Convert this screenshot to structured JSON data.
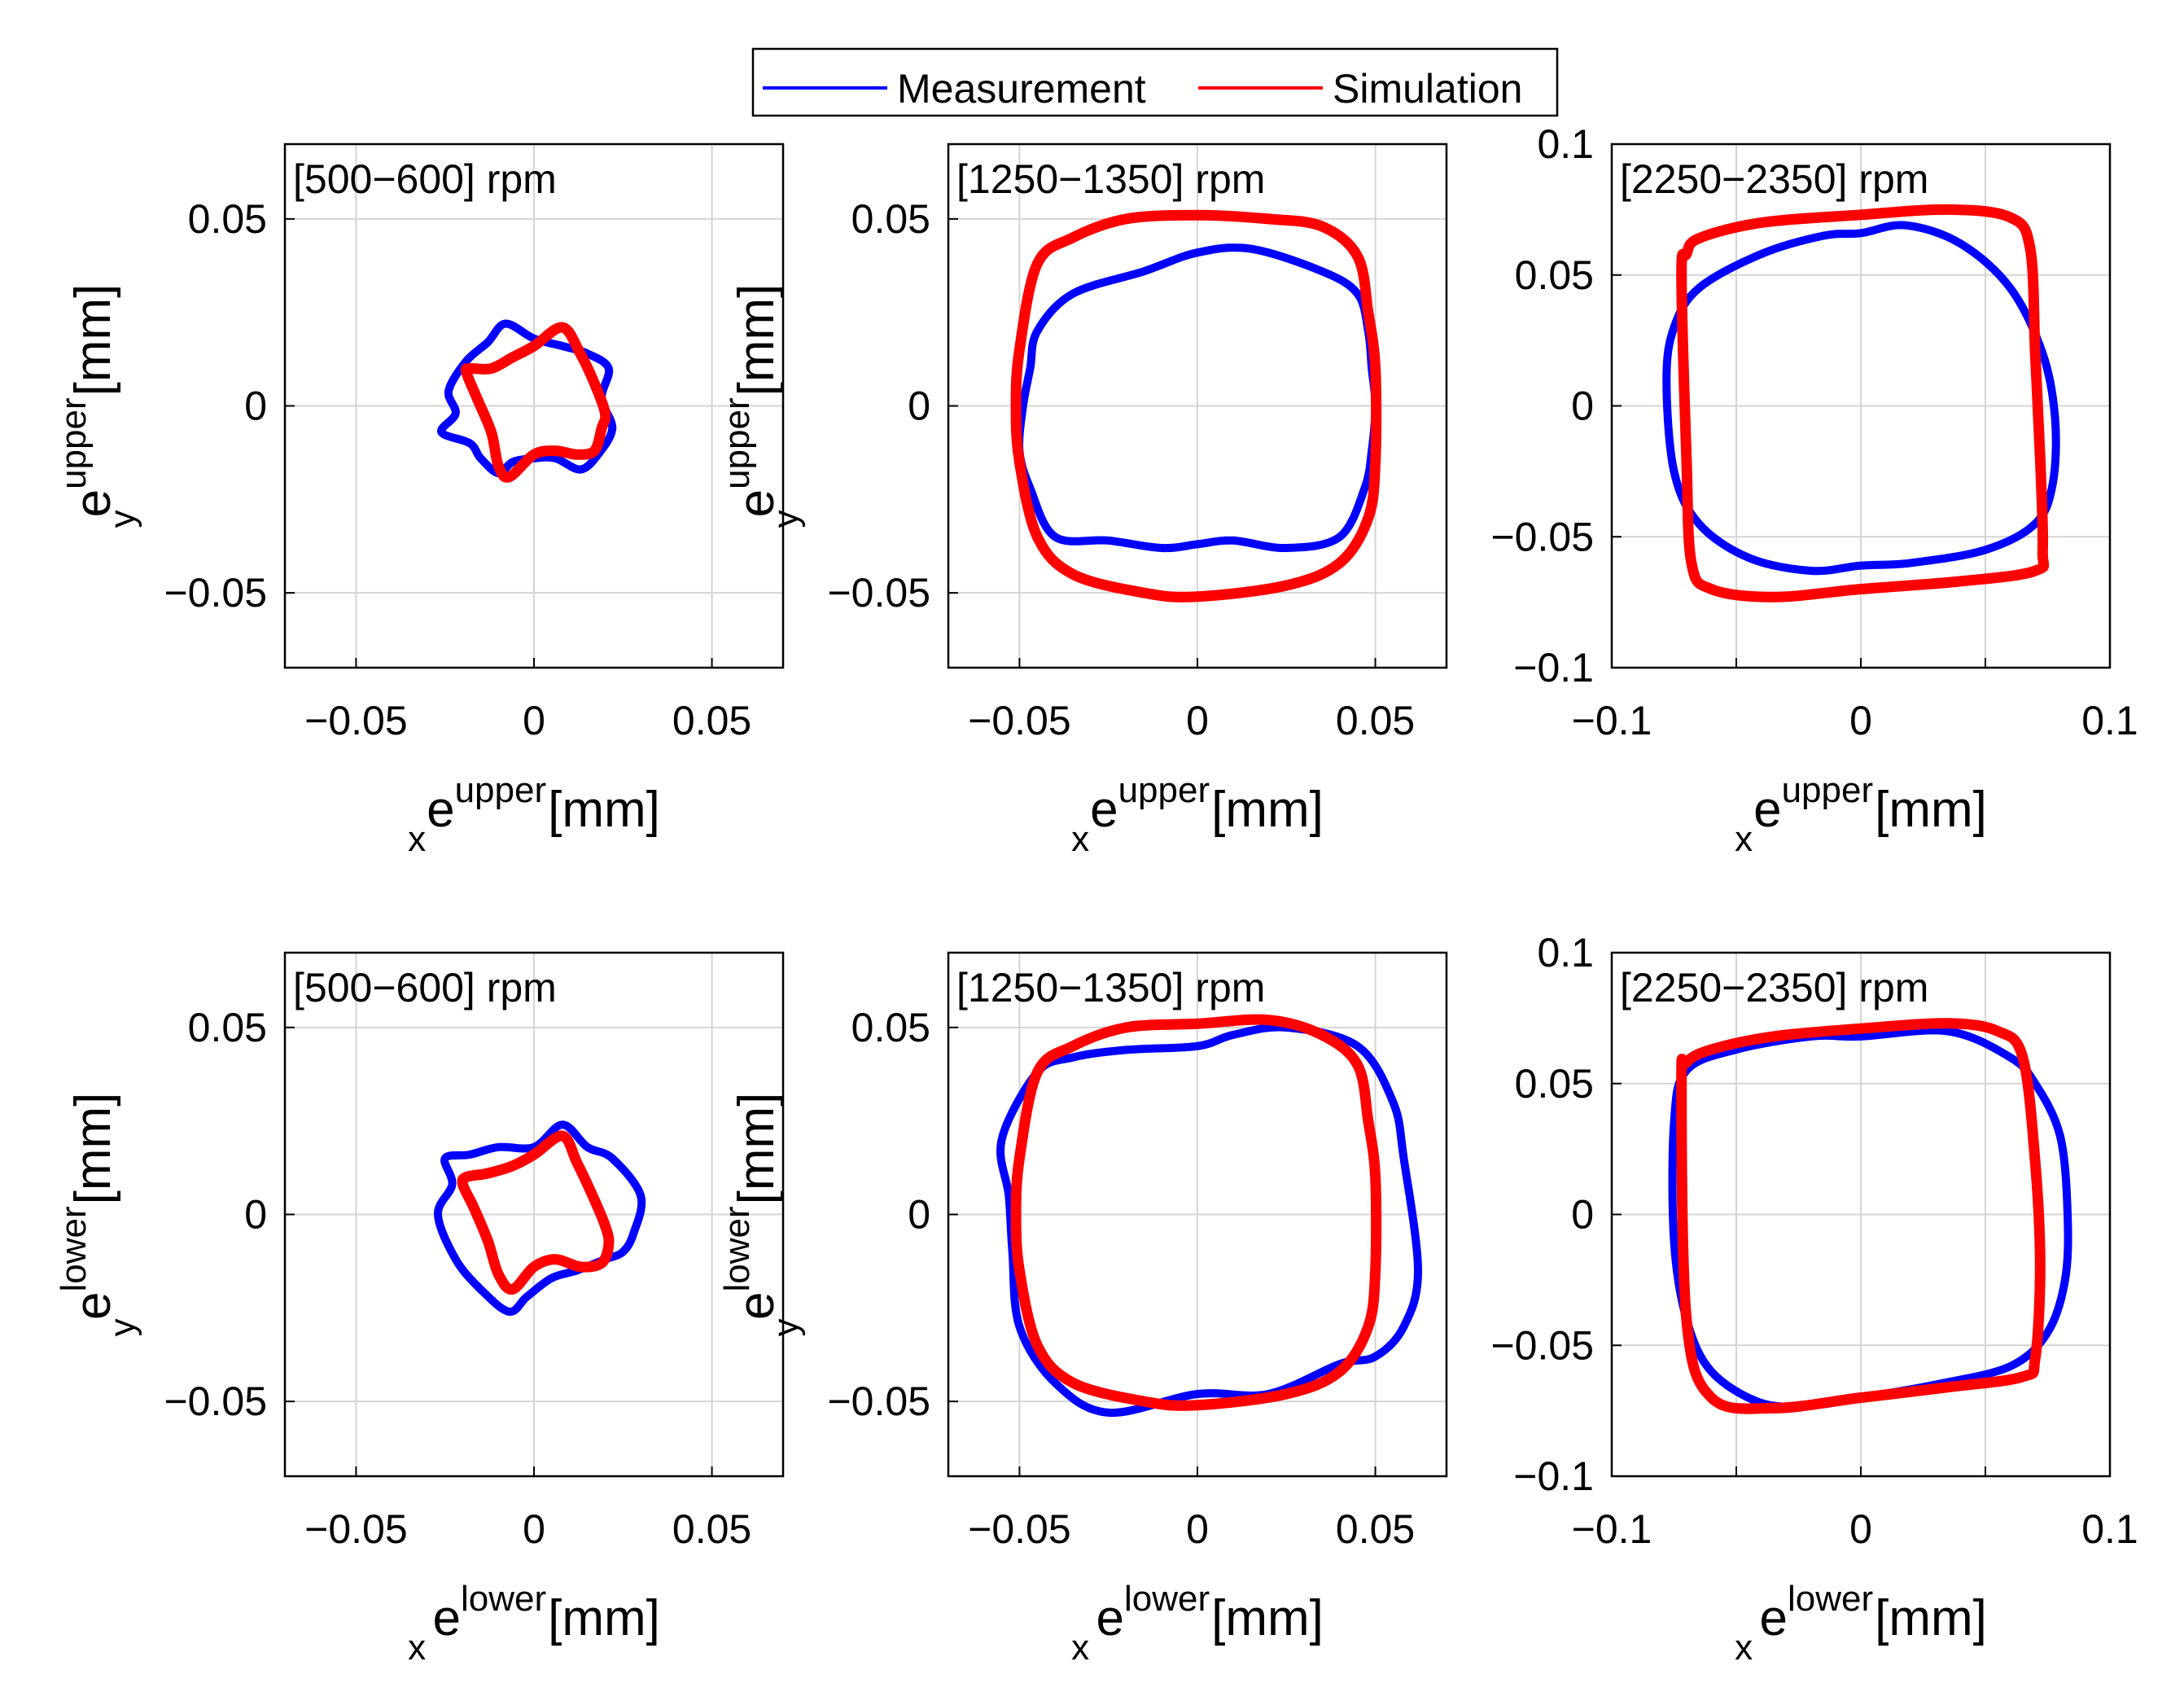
{
  "legend": {
    "measurement_label": "Measurement",
    "simulation_label": "Simulation",
    "measurement_color": "#0000ff",
    "simulation_color": "#ff0000"
  },
  "chart_data": [
    {
      "type": "line",
      "row": "upper",
      "title": "[500−600] rpm",
      "xlim": [
        -0.07,
        0.07
      ],
      "ylim": [
        -0.07,
        0.07
      ],
      "xticks": [
        -0.05,
        0,
        0.05
      ],
      "yticks": [
        -0.05,
        0,
        0.05
      ],
      "xtick_labels": [
        "-0.05",
        "0",
        "0.05"
      ],
      "ytick_labels": [
        "-0.05",
        "0",
        "0.05"
      ],
      "xlabel": {
        "base": "e",
        "sup": "upper",
        "sub": "x",
        "unit": "[mm]"
      },
      "ylabel": {
        "base": "e",
        "sup": "upper",
        "sub": "y",
        "unit": "[mm]"
      },
      "series": [
        {
          "name": "Measurement",
          "x": [
            0.0,
            0.008,
            0.015,
            0.021,
            0.019,
            0.022,
            0.018,
            0.013,
            0.006,
            0.0,
            -0.006,
            -0.01,
            -0.015,
            -0.018,
            -0.026,
            -0.022,
            -0.024,
            -0.019,
            -0.013,
            -0.008,
            0.0
          ],
          "y": [
            0.018,
            0.016,
            0.014,
            0.01,
            0.002,
            -0.006,
            -0.013,
            -0.017,
            -0.014,
            -0.014,
            -0.015,
            -0.018,
            -0.014,
            -0.01,
            -0.007,
            -0.002,
            0.004,
            0.012,
            0.017,
            0.022,
            0.018
          ]
        },
        {
          "name": "Simulation",
          "x": [
            0.008,
            0.013,
            0.017,
            0.02,
            0.019,
            0.017,
            0.012,
            0.006,
            0.0,
            -0.007,
            -0.01,
            -0.012,
            -0.016,
            -0.019,
            -0.018,
            -0.012,
            -0.006,
            0.0,
            0.008
          ],
          "y": [
            0.021,
            0.014,
            0.006,
            -0.002,
            -0.006,
            -0.012,
            -0.013,
            -0.012,
            -0.013,
            -0.019,
            -0.016,
            -0.007,
            0.002,
            0.009,
            0.01,
            0.01,
            0.013,
            0.016,
            0.021
          ]
        }
      ]
    },
    {
      "type": "line",
      "row": "upper",
      "title": "[1250−1350] rpm",
      "xlim": [
        -0.07,
        0.07
      ],
      "ylim": [
        -0.07,
        0.07
      ],
      "xticks": [
        -0.05,
        0,
        0.05
      ],
      "yticks": [
        -0.05,
        0,
        0.05
      ],
      "xtick_labels": [
        "-0.05",
        "0",
        "0.05"
      ],
      "ytick_labels": [
        "-0.05",
        "0",
        "0.05"
      ],
      "xlabel": {
        "base": "e",
        "sup": "upper",
        "sub": "x",
        "unit": "[mm]"
      },
      "ylabel": {
        "base": "e",
        "sup": "upper",
        "sub": "y",
        "unit": "[mm]"
      },
      "series": [
        {
          "name": "Measurement",
          "x": [
            0.0,
            0.015,
            0.035,
            0.045,
            0.048,
            0.049,
            0.05,
            0.049,
            0.047,
            0.04,
            0.025,
            0.01,
            0.0,
            -0.01,
            -0.025,
            -0.04,
            -0.047,
            -0.05,
            -0.049,
            -0.047,
            -0.045,
            -0.035,
            -0.015,
            0.0
          ],
          "y": [
            0.041,
            0.042,
            0.036,
            0.03,
            0.02,
            0.01,
            0.0,
            -0.012,
            -0.022,
            -0.035,
            -0.038,
            -0.036,
            -0.037,
            -0.038,
            -0.036,
            -0.035,
            -0.022,
            -0.012,
            0.0,
            0.01,
            0.02,
            0.03,
            0.036,
            0.041
          ]
        },
        {
          "name": "Simulation",
          "x": [
            -0.05,
            -0.045,
            -0.035,
            -0.02,
            0.0,
            0.02,
            0.035,
            0.045,
            0.048,
            0.05,
            0.05,
            0.048,
            0.04,
            0.025,
            0.0,
            -0.015,
            -0.035,
            -0.045,
            -0.05,
            -0.051,
            -0.05
          ],
          "y": [
            0.015,
            0.038,
            0.045,
            0.05,
            0.051,
            0.05,
            0.048,
            0.04,
            0.025,
            0.01,
            -0.015,
            -0.03,
            -0.042,
            -0.048,
            -0.051,
            -0.05,
            -0.045,
            -0.035,
            -0.015,
            0.0,
            0.015
          ]
        }
      ]
    },
    {
      "type": "line",
      "row": "upper",
      "title": "[2250−2350] rpm",
      "xlim": [
        -0.1,
        0.1
      ],
      "ylim": [
        -0.1,
        0.1
      ],
      "xticks": [
        -0.1,
        -0.05,
        0,
        0.05,
        0.1
      ],
      "yticks": [
        -0.1,
        -0.05,
        0,
        0.05,
        0.1
      ],
      "xtick_labels": [
        "-0.1",
        "",
        "0",
        "",
        "0.1"
      ],
      "ytick_labels": [
        "-0.1",
        "-0.05",
        "0",
        "0.05",
        "0.1"
      ],
      "xlabel": {
        "base": "e",
        "sup": "upper",
        "sub": "x",
        "unit": "[mm]"
      },
      "ylabel": {
        "base": "",
        "sup": "",
        "sub": "",
        "unit": ""
      },
      "series": [
        {
          "name": "Measurement",
          "x": [
            -0.078,
            -0.075,
            -0.065,
            -0.04,
            -0.015,
            0.0,
            0.018,
            0.04,
            0.06,
            0.073,
            0.078,
            0.077,
            0.07,
            0.05,
            0.02,
            0.0,
            -0.02,
            -0.045,
            -0.065,
            -0.075,
            -0.078
          ],
          "y": [
            0.01,
            0.03,
            0.045,
            0.058,
            0.065,
            0.066,
            0.069,
            0.062,
            0.045,
            0.02,
            -0.005,
            -0.03,
            -0.045,
            -0.055,
            -0.06,
            -0.061,
            -0.063,
            -0.058,
            -0.045,
            -0.025,
            0.01
          ]
        },
        {
          "name": "Simulation",
          "x": [
            -0.072,
            -0.07,
            -0.065,
            -0.04,
            0.0,
            0.035,
            0.06,
            0.068,
            0.07,
            0.072,
            0.073,
            0.07,
            0.04,
            0.0,
            -0.035,
            -0.06,
            -0.068,
            -0.07,
            -0.072
          ],
          "y": [
            0.05,
            0.058,
            0.064,
            0.07,
            0.073,
            0.075,
            0.072,
            0.06,
            0.02,
            -0.02,
            -0.055,
            -0.063,
            -0.067,
            -0.07,
            -0.073,
            -0.07,
            -0.06,
            -0.02,
            0.05
          ]
        }
      ]
    },
    {
      "type": "line",
      "row": "lower",
      "title": "[500−600] rpm",
      "xlim": [
        -0.07,
        0.07
      ],
      "ylim": [
        -0.07,
        0.07
      ],
      "xticks": [
        -0.05,
        0,
        0.05
      ],
      "yticks": [
        -0.05,
        0,
        0.05
      ],
      "xtick_labels": [
        "-0.05",
        "0",
        "0.05"
      ],
      "ytick_labels": [
        "-0.05",
        "0",
        "0.05"
      ],
      "xlabel": {
        "base": "e",
        "sup": "lower",
        "sub": "x",
        "unit": "[mm]"
      },
      "ylabel": {
        "base": "e",
        "sup": "lower",
        "sub": "y",
        "unit": "[mm]"
      },
      "series": [
        {
          "name": "Measurement",
          "x": [
            0.0,
            0.008,
            0.015,
            0.022,
            0.03,
            0.028,
            0.025,
            0.02,
            0.012,
            0.005,
            -0.002,
            -0.007,
            -0.015,
            -0.022,
            -0.027,
            -0.023,
            -0.025,
            -0.018,
            -0.01,
            0.0
          ],
          "y": [
            0.018,
            0.024,
            0.018,
            0.015,
            0.005,
            -0.005,
            -0.01,
            -0.012,
            -0.015,
            -0.017,
            -0.022,
            -0.026,
            -0.02,
            -0.012,
            0.0,
            0.008,
            0.015,
            0.016,
            0.018,
            0.018
          ]
        },
        {
          "name": "Simulation",
          "x": [
            0.008,
            0.012,
            0.016,
            0.02,
            0.021,
            0.019,
            0.013,
            0.006,
            0.0,
            -0.006,
            -0.01,
            -0.013,
            -0.017,
            -0.02,
            -0.019,
            -0.013,
            -0.006,
            0.0,
            0.008
          ],
          "y": [
            0.021,
            0.014,
            0.006,
            -0.003,
            -0.008,
            -0.013,
            -0.014,
            -0.012,
            -0.014,
            -0.02,
            -0.016,
            -0.007,
            0.002,
            0.008,
            0.01,
            0.011,
            0.013,
            0.016,
            0.021
          ]
        }
      ]
    },
    {
      "type": "line",
      "row": "lower",
      "title": "[1250−1350] rpm",
      "xlim": [
        -0.07,
        0.07
      ],
      "ylim": [
        -0.07,
        0.07
      ],
      "xticks": [
        -0.05,
        0,
        0.05
      ],
      "yticks": [
        -0.05,
        0,
        0.05
      ],
      "xtick_labels": [
        "-0.05",
        "0",
        "0.05"
      ],
      "ytick_labels": [
        "-0.05",
        "0",
        "0.05"
      ],
      "xlabel": {
        "base": "e",
        "sup": "lower",
        "sub": "x",
        "unit": "[mm]"
      },
      "ylabel": {
        "base": "e",
        "sup": "lower",
        "sub": "y",
        "unit": "[mm]"
      },
      "series": [
        {
          "name": "Measurement",
          "x": [
            -0.055,
            -0.045,
            -0.035,
            -0.02,
            0.0,
            0.01,
            0.025,
            0.045,
            0.055,
            0.058,
            0.062,
            0.058,
            0.05,
            0.04,
            0.02,
            0.0,
            -0.025,
            -0.04,
            -0.05,
            -0.052,
            -0.053,
            -0.055
          ],
          "y": [
            0.02,
            0.038,
            0.042,
            0.044,
            0.045,
            0.048,
            0.05,
            0.045,
            0.03,
            0.015,
            -0.015,
            -0.03,
            -0.038,
            -0.04,
            -0.048,
            -0.048,
            -0.053,
            -0.045,
            -0.03,
            -0.01,
            0.005,
            0.02
          ]
        },
        {
          "name": "Simulation",
          "x": [
            -0.05,
            -0.045,
            -0.035,
            -0.02,
            0.0,
            0.02,
            0.035,
            0.045,
            0.048,
            0.05,
            0.05,
            0.048,
            0.04,
            0.025,
            0.0,
            -0.015,
            -0.035,
            -0.045,
            -0.05,
            -0.051,
            -0.05
          ],
          "y": [
            0.015,
            0.038,
            0.045,
            0.05,
            0.051,
            0.052,
            0.048,
            0.04,
            0.025,
            0.01,
            -0.015,
            -0.03,
            -0.042,
            -0.048,
            -0.051,
            -0.05,
            -0.045,
            -0.035,
            -0.015,
            0.0,
            0.015
          ]
        }
      ]
    },
    {
      "type": "line",
      "row": "lower",
      "title": "[2250−2350] rpm",
      "xlim": [
        -0.1,
        0.1
      ],
      "ylim": [
        -0.1,
        0.1
      ],
      "xticks": [
        -0.1,
        -0.05,
        0,
        0.05,
        0.1
      ],
      "yticks": [
        -0.1,
        -0.05,
        0,
        0.05,
        0.1
      ],
      "xtick_labels": [
        "-0.1",
        "",
        "0",
        "",
        "0.1"
      ],
      "ytick_labels": [
        "-0.1",
        "-0.05",
        "0",
        "0.05",
        "0.1"
      ],
      "xlabel": {
        "base": "e",
        "sup": "lower",
        "sub": "x",
        "unit": "[mm]"
      },
      "ylabel": {
        "base": "",
        "sup": "",
        "sub": "",
        "unit": ""
      },
      "series": [
        {
          "name": "Measurement",
          "x": [
            -0.075,
            -0.07,
            -0.05,
            -0.02,
            0.0,
            0.035,
            0.06,
            0.07,
            0.08,
            0.083,
            0.082,
            0.075,
            0.06,
            0.03,
            0.0,
            -0.02,
            -0.04,
            -0.06,
            -0.07,
            -0.075,
            -0.075
          ],
          "y": [
            0.035,
            0.055,
            0.063,
            0.068,
            0.068,
            0.07,
            0.06,
            0.05,
            0.03,
            0.0,
            -0.025,
            -0.045,
            -0.058,
            -0.065,
            -0.07,
            -0.073,
            -0.072,
            -0.06,
            -0.04,
            -0.01,
            0.035
          ]
        },
        {
          "name": "Simulation",
          "x": [
            -0.072,
            -0.07,
            -0.06,
            -0.035,
            0.0,
            0.035,
            0.055,
            0.065,
            0.07,
            0.072,
            0.07,
            0.065,
            0.035,
            0.0,
            -0.035,
            -0.06,
            -0.07,
            -0.072
          ],
          "y": [
            0.05,
            0.058,
            0.063,
            0.068,
            0.071,
            0.073,
            0.07,
            0.06,
            0.02,
            -0.02,
            -0.055,
            -0.062,
            -0.066,
            -0.07,
            -0.074,
            -0.07,
            -0.04,
            0.05
          ]
        }
      ]
    }
  ]
}
